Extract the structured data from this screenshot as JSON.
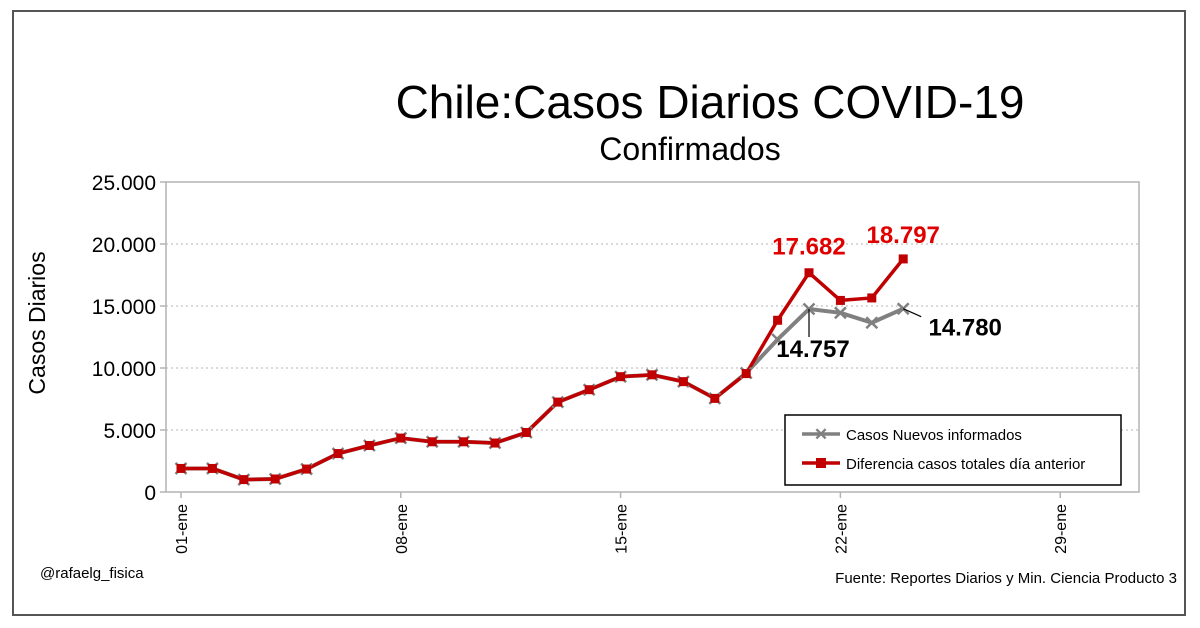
{
  "credit": "@rafaelg_fisica",
  "source": "Fuente: Reportes Diarios y Min. Ciencia Producto 3",
  "colors": {
    "gray_series": "#808080",
    "red_series": "#c00000",
    "red_label": "#e00000",
    "axis": "#b3b3b3",
    "grid": "#b3b3b3"
  },
  "chart_data": {
    "type": "line",
    "title": "Chile:Casos Diarios COVID-19",
    "subtitle": "Confirmados",
    "ylabel": "Casos Diarios",
    "xlabel": "",
    "ylim": [
      0,
      25000
    ],
    "y_ticks": [
      0,
      5000,
      10000,
      15000,
      20000,
      25000
    ],
    "y_tick_labels": [
      "0",
      "5.000",
      "10.000",
      "15.000",
      "20.000",
      "25.000"
    ],
    "xlim": [
      "31-dic",
      "01-feb"
    ],
    "x_tick_labels": [
      "01-ene",
      "08-ene",
      "15-ene",
      "22-ene",
      "29-ene"
    ],
    "grid": true,
    "legend_position": "bottom-right",
    "x": [
      "01-ene",
      "02-ene",
      "03-ene",
      "04-ene",
      "05-ene",
      "06-ene",
      "07-ene",
      "08-ene",
      "09-ene",
      "10-ene",
      "11-ene",
      "12-ene",
      "13-ene",
      "14-ene",
      "15-ene",
      "16-ene",
      "17-ene",
      "18-ene",
      "19-ene",
      "20-ene",
      "21-ene",
      "22-ene",
      "23-ene",
      "24-ene"
    ],
    "series": [
      {
        "name": "Casos Nuevos informados",
        "marker": "x",
        "color": "#808080",
        "values": [
          1900,
          1900,
          1000,
          1050,
          1850,
          3100,
          3750,
          4350,
          4050,
          4050,
          3950,
          4800,
          7250,
          8250,
          9300,
          9450,
          8900,
          7550,
          9600,
          12300,
          14757,
          14450,
          13650,
          14780
        ]
      },
      {
        "name": "Diferencia casos totales día anterior",
        "marker": "square",
        "color": "#c00000",
        "values": [
          1900,
          1900,
          1000,
          1050,
          1850,
          3100,
          3750,
          4350,
          4050,
          4050,
          3950,
          4800,
          7250,
          8250,
          9300,
          9450,
          8900,
          7550,
          9550,
          13850,
          17682,
          15450,
          15650,
          18797
        ]
      }
    ],
    "annotations": [
      {
        "text": "17.682",
        "x": "21-ene",
        "series": "Diferencia casos totales día anterior"
      },
      {
        "text": "18.797",
        "x": "24-ene",
        "series": "Diferencia casos totales día anterior"
      },
      {
        "text": "14.757",
        "x": "21-ene",
        "series": "Casos Nuevos informados"
      },
      {
        "text": "14.780",
        "x": "24-ene",
        "series": "Casos Nuevos informados"
      }
    ]
  }
}
